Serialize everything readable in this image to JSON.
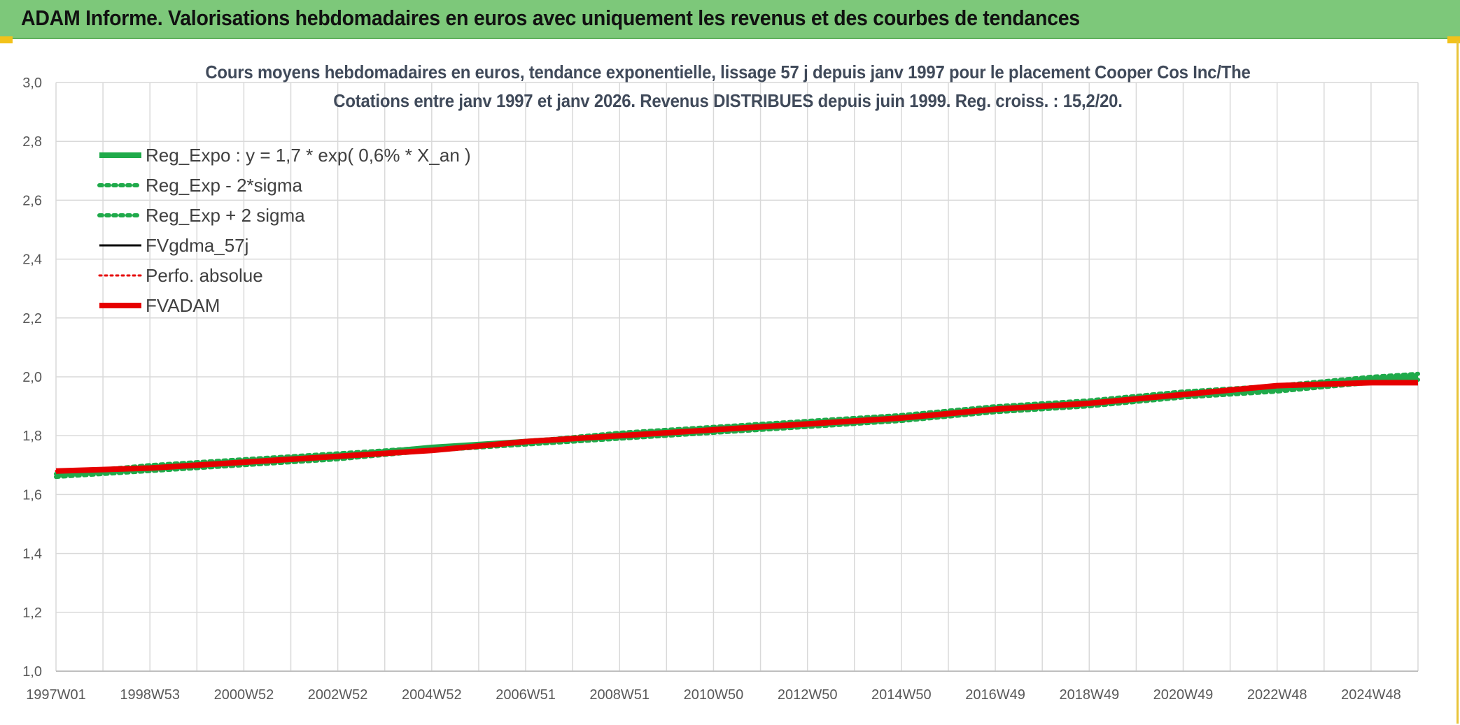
{
  "header": {
    "title": "ADAM Informe. Valorisations hebdomadaires en euros avec uniquement les revenus et des courbes de tendances"
  },
  "colors": {
    "banner": "#7dc87a",
    "reg_expo": "#1faa4a",
    "sigma": "#1faa4a",
    "fvgdma": "#000000",
    "perfo": "#e60000",
    "fvadam": "#e60000",
    "grid": "#d9d9d9"
  },
  "chart_data": {
    "type": "line",
    "title_line1": "Cours moyens hebdomadaires en euros, tendance exponentielle, lissage 57 j depuis janv 1997 pour le placement Cooper Cos Inc/The",
    "title_line2": "Cotations entre janv 1997 et janv 2026. Revenus DISTRIBUES depuis juin 1999. Reg. croiss. : 15,2/20.",
    "ylim": [
      1.0,
      3.0
    ],
    "y_ticks": [
      "1,0",
      "1,2",
      "1,4",
      "1,6",
      "1,8",
      "2,0",
      "2,2",
      "2,4",
      "2,6",
      "2,8",
      "3,0"
    ],
    "x_ticks": [
      "1997W01",
      "1998W53",
      "2000W52",
      "2002W52",
      "2004W52",
      "2006W51",
      "2008W51",
      "2010W50",
      "2012W50",
      "2014W50",
      "2016W49",
      "2018W49",
      "2020W49",
      "2022W48",
      "2024W48"
    ],
    "grid": true,
    "legend_position": "top-left",
    "x": [
      1997.0,
      1999.0,
      2001.0,
      2003.0,
      2005.0,
      2007.0,
      2009.0,
      2011.0,
      2013.0,
      2015.0,
      2017.0,
      2019.0,
      2021.0,
      2023.0,
      2025.0,
      2026.0
    ],
    "series": [
      {
        "name": "Reg_Expo : y = 1,7 * exp( 0,6% *  X_an )",
        "style": "solid-green",
        "values": [
          1.67,
          1.69,
          1.71,
          1.73,
          1.76,
          1.78,
          1.8,
          1.82,
          1.84,
          1.86,
          1.89,
          1.91,
          1.94,
          1.96,
          1.99,
          2.0
        ]
      },
      {
        "name": "Reg_Exp - 2*sigma",
        "style": "dotted-green",
        "values": [
          1.66,
          1.68,
          1.7,
          1.72,
          1.75,
          1.77,
          1.79,
          1.81,
          1.83,
          1.85,
          1.88,
          1.9,
          1.93,
          1.95,
          1.98,
          1.99
        ]
      },
      {
        "name": "Reg_Exp + 2 sigma",
        "style": "dotted-green",
        "values": [
          1.67,
          1.7,
          1.72,
          1.74,
          1.76,
          1.78,
          1.81,
          1.83,
          1.85,
          1.87,
          1.9,
          1.92,
          1.95,
          1.97,
          2.0,
          2.01
        ]
      },
      {
        "name": "FVgdma_57j",
        "style": "solid-black",
        "values": [
          1.68,
          1.69,
          1.71,
          1.73,
          1.75,
          1.78,
          1.8,
          1.82,
          1.84,
          1.86,
          1.89,
          1.91,
          1.94,
          1.97,
          1.98,
          1.98
        ]
      },
      {
        "name": "Perfo. absolue",
        "style": "dotted-red",
        "values": [
          1.68,
          1.69,
          1.71,
          1.73,
          1.75,
          1.78,
          1.8,
          1.82,
          1.84,
          1.86,
          1.89,
          1.91,
          1.94,
          1.97,
          1.98,
          1.98
        ]
      },
      {
        "name": "FVADAM",
        "style": "solid-red",
        "values": [
          1.68,
          1.69,
          1.71,
          1.73,
          1.75,
          1.78,
          1.8,
          1.82,
          1.84,
          1.86,
          1.89,
          1.91,
          1.94,
          1.97,
          1.98,
          1.98
        ]
      }
    ]
  }
}
